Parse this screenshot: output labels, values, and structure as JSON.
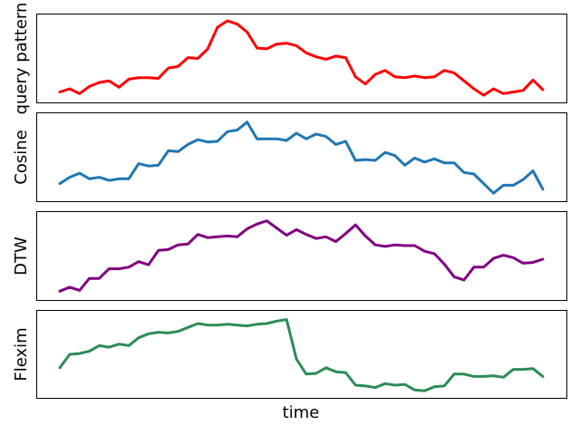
{
  "chart_data": [
    {
      "type": "line",
      "ylabel": "query pattern",
      "xlabel": "",
      "color": "#ff0000",
      "grid": false,
      "ticks": "hidden",
      "ylim": [
        0,
        1
      ],
      "values": [
        0.08,
        0.12,
        0.06,
        0.15,
        0.2,
        0.22,
        0.14,
        0.24,
        0.26,
        0.26,
        0.25,
        0.38,
        0.4,
        0.51,
        0.5,
        0.62,
        0.89,
        0.97,
        0.93,
        0.83,
        0.63,
        0.62,
        0.68,
        0.69,
        0.66,
        0.57,
        0.52,
        0.49,
        0.53,
        0.51,
        0.27,
        0.18,
        0.3,
        0.35,
        0.27,
        0.26,
        0.28,
        0.26,
        0.27,
        0.35,
        0.32,
        0.22,
        0.12,
        0.04,
        0.12,
        0.06,
        0.08,
        0.1,
        0.23,
        0.11
      ]
    },
    {
      "type": "line",
      "ylabel": "Cosine",
      "xlabel": "",
      "color": "#1f77b4",
      "grid": false,
      "ticks": "hidden",
      "ylim": [
        0,
        1
      ],
      "values": [
        0.17,
        0.25,
        0.3,
        0.23,
        0.25,
        0.21,
        0.23,
        0.23,
        0.42,
        0.39,
        0.4,
        0.58,
        0.57,
        0.66,
        0.72,
        0.69,
        0.7,
        0.82,
        0.84,
        0.94,
        0.73,
        0.73,
        0.73,
        0.71,
        0.8,
        0.73,
        0.79,
        0.76,
        0.66,
        0.7,
        0.46,
        0.47,
        0.46,
        0.56,
        0.52,
        0.4,
        0.49,
        0.44,
        0.48,
        0.43,
        0.43,
        0.31,
        0.29,
        0.17,
        0.05,
        0.15,
        0.15,
        0.22,
        0.33,
        0.1
      ]
    },
    {
      "type": "line",
      "ylabel": "DTW",
      "xlabel": "",
      "color": "#800080",
      "grid": false,
      "ticks": "hidden",
      "ylim": [
        0,
        1
      ],
      "values": [
        0.06,
        0.11,
        0.07,
        0.22,
        0.22,
        0.34,
        0.34,
        0.36,
        0.43,
        0.39,
        0.57,
        0.58,
        0.64,
        0.65,
        0.77,
        0.73,
        0.74,
        0.75,
        0.74,
        0.84,
        0.9,
        0.94,
        0.85,
        0.76,
        0.83,
        0.77,
        0.72,
        0.74,
        0.68,
        0.78,
        0.89,
        0.75,
        0.64,
        0.62,
        0.64,
        0.63,
        0.63,
        0.56,
        0.53,
        0.4,
        0.24,
        0.2,
        0.36,
        0.36,
        0.47,
        0.51,
        0.48,
        0.41,
        0.42,
        0.46
      ]
    },
    {
      "type": "line",
      "ylabel": "Flexim",
      "xlabel": "time",
      "color": "#2e8b57",
      "grid": false,
      "ticks": "hidden",
      "ylim": [
        0,
        1
      ],
      "values": [
        0.33,
        0.5,
        0.51,
        0.54,
        0.61,
        0.59,
        0.63,
        0.61,
        0.71,
        0.76,
        0.78,
        0.77,
        0.79,
        0.84,
        0.89,
        0.87,
        0.87,
        0.88,
        0.87,
        0.86,
        0.88,
        0.89,
        0.92,
        0.94,
        0.44,
        0.25,
        0.26,
        0.33,
        0.28,
        0.27,
        0.11,
        0.1,
        0.08,
        0.13,
        0.11,
        0.12,
        0.05,
        0.04,
        0.09,
        0.1,
        0.25,
        0.25,
        0.22,
        0.22,
        0.23,
        0.21,
        0.31,
        0.31,
        0.32,
        0.22
      ]
    }
  ]
}
